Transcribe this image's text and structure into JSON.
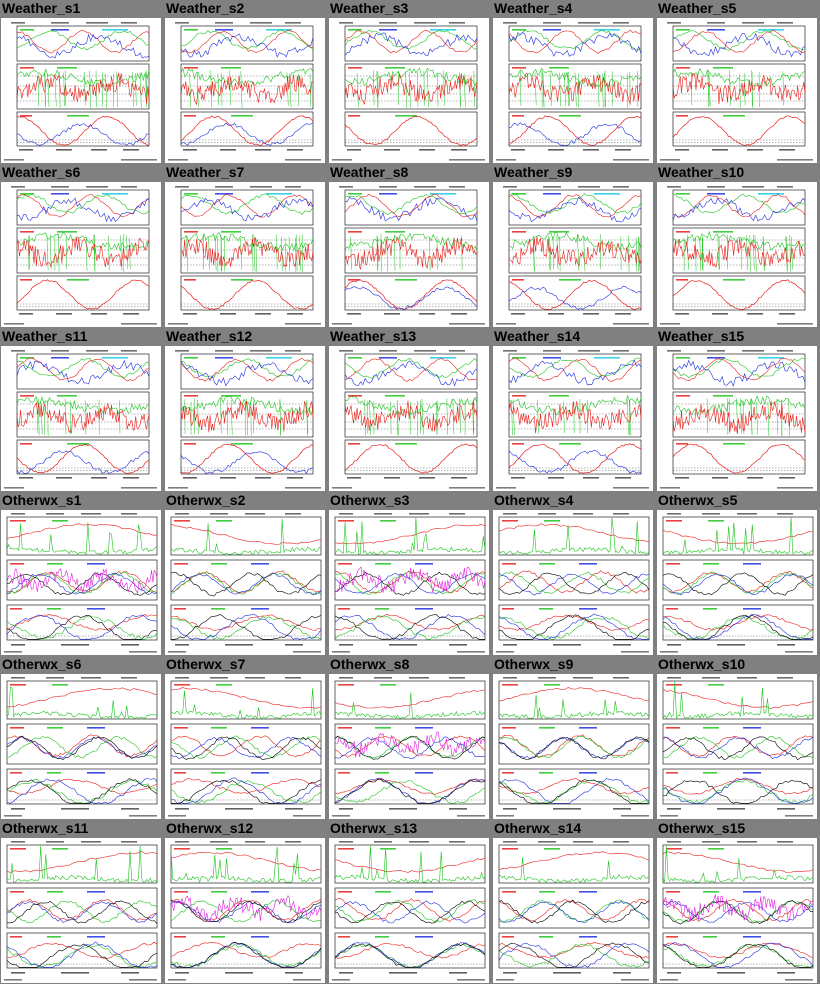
{
  "colors": {
    "background": "#808080",
    "thumbnail_bg": "#ffffff",
    "red_trace": "#e8201c",
    "green_trace": "#1fc41f",
    "blue_trace": "#2030e0",
    "cyan_trace": "#19c8e0",
    "magenta_trace": "#e020e0",
    "black_trace": "#000000"
  },
  "stations": [
    {
      "label": "Weather_s1",
      "kind": "weather"
    },
    {
      "label": "Weather_s2",
      "kind": "weather"
    },
    {
      "label": "Weather_s3",
      "kind": "weather"
    },
    {
      "label": "Weather_s4",
      "kind": "weather"
    },
    {
      "label": "Weather_s5",
      "kind": "weather"
    },
    {
      "label": "Weather_s6",
      "kind": "weather"
    },
    {
      "label": "Weather_s7",
      "kind": "weather"
    },
    {
      "label": "Weather_s8",
      "kind": "weather"
    },
    {
      "label": "Weather_s9",
      "kind": "weather"
    },
    {
      "label": "Weather_s10",
      "kind": "weather"
    },
    {
      "label": "Weather_s11",
      "kind": "weather"
    },
    {
      "label": "Weather_s12",
      "kind": "weather"
    },
    {
      "label": "Weather_s13",
      "kind": "weather"
    },
    {
      "label": "Weather_s14",
      "kind": "weather"
    },
    {
      "label": "Weather_s15",
      "kind": "weather"
    },
    {
      "label": "Otherwx_s1",
      "kind": "otherwx"
    },
    {
      "label": "Otherwx_s2",
      "kind": "otherwx"
    },
    {
      "label": "Otherwx_s3",
      "kind": "otherwx"
    },
    {
      "label": "Otherwx_s4",
      "kind": "otherwx"
    },
    {
      "label": "Otherwx_s5",
      "kind": "otherwx"
    },
    {
      "label": "Otherwx_s6",
      "kind": "otherwx"
    },
    {
      "label": "Otherwx_s7",
      "kind": "otherwx"
    },
    {
      "label": "Otherwx_s8",
      "kind": "otherwx"
    },
    {
      "label": "Otherwx_s9",
      "kind": "otherwx"
    },
    {
      "label": "Otherwx_s10",
      "kind": "otherwx"
    },
    {
      "label": "Otherwx_s11",
      "kind": "otherwx"
    },
    {
      "label": "Otherwx_s12",
      "kind": "otherwx"
    },
    {
      "label": "Otherwx_s13",
      "kind": "otherwx"
    },
    {
      "label": "Otherwx_s14",
      "kind": "otherwx"
    },
    {
      "label": "Otherwx_s15",
      "kind": "otherwx"
    }
  ]
}
